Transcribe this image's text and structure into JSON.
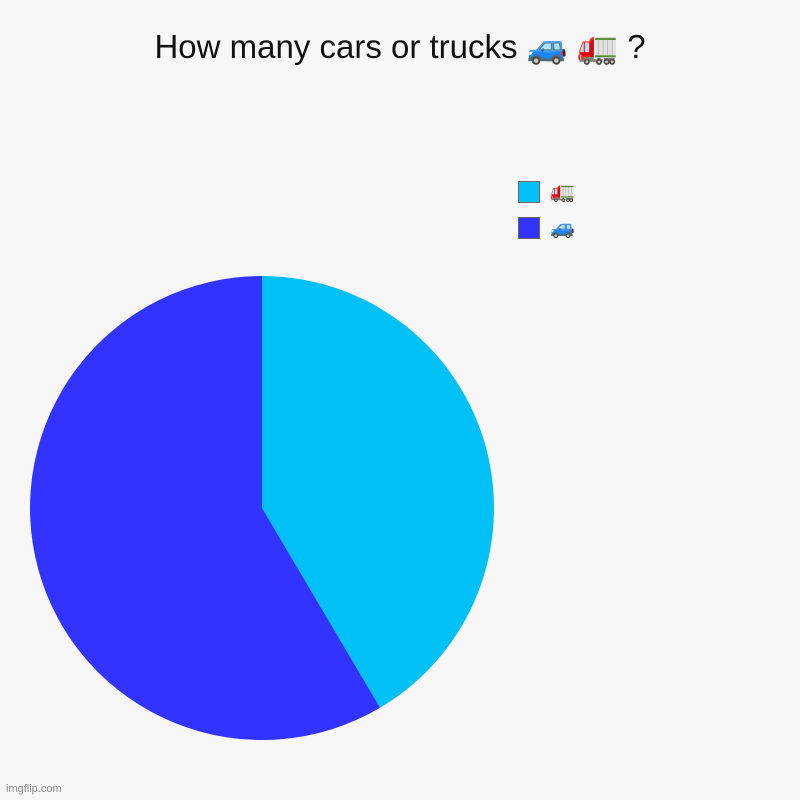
{
  "chart_data": {
    "type": "pie",
    "title": "How many cars or trucks 🚙 🚛 ?",
    "slices": [
      {
        "label": "🚛",
        "value": 41.5,
        "color": "#00c0f5"
      },
      {
        "label": "🚙",
        "value": 58.5,
        "color": "#3333ff"
      }
    ],
    "legend": "top-right",
    "start_angle": "12 o'clock",
    "direction": "clockwise"
  },
  "watermark": "imgflip.com"
}
